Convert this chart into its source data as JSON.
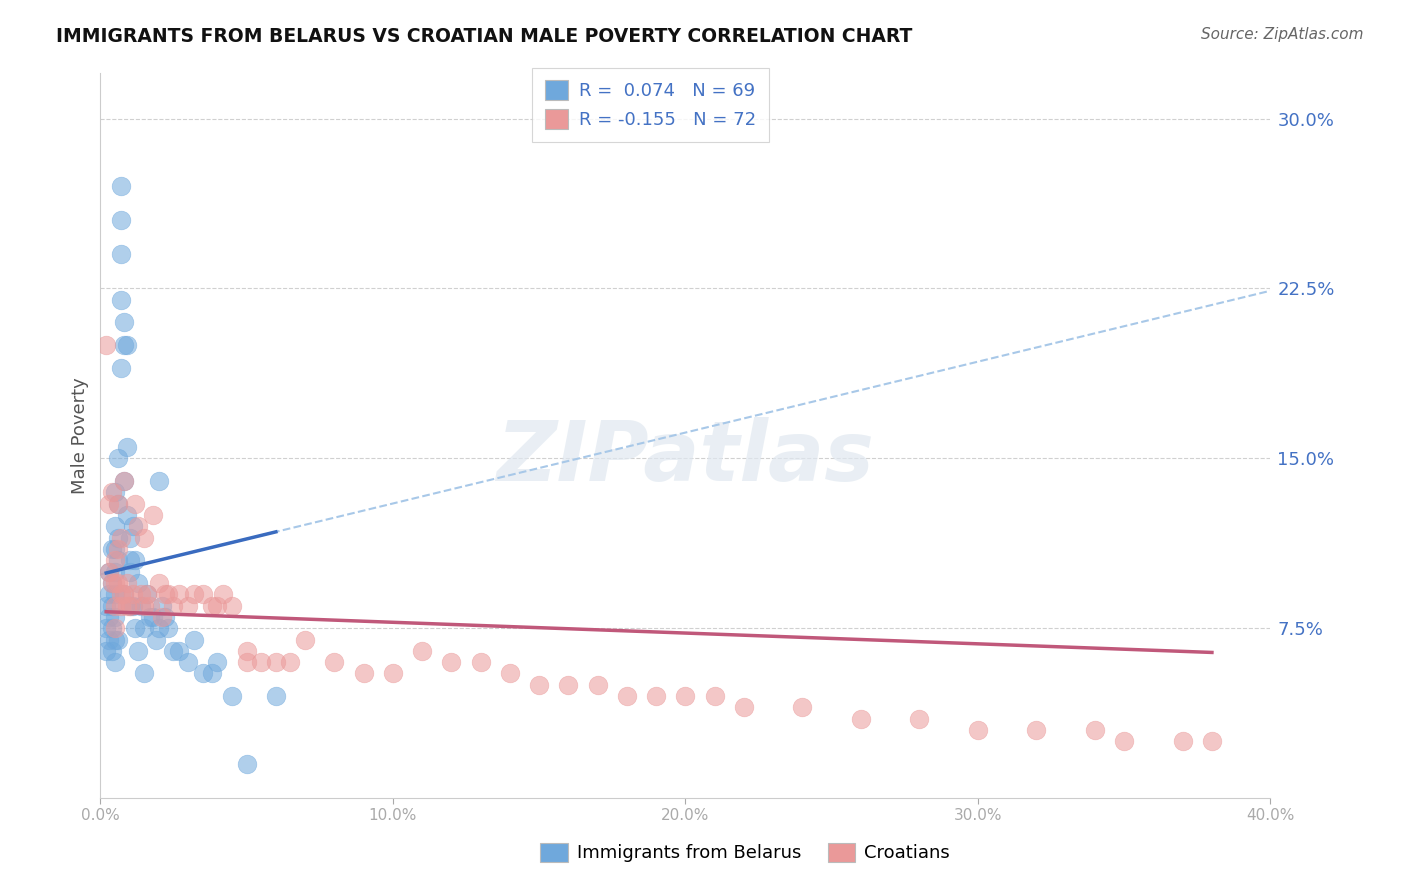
{
  "title": "IMMIGRANTS FROM BELARUS VS CROATIAN MALE POVERTY CORRELATION CHART",
  "source": "Source: ZipAtlas.com",
  "ylabel": "Male Poverty",
  "ytick_labels": [
    "7.5%",
    "15.0%",
    "22.5%",
    "30.0%"
  ],
  "ytick_values": [
    0.075,
    0.15,
    0.225,
    0.3
  ],
  "xlim": [
    0.0,
    0.4
  ],
  "ylim": [
    0.0,
    0.32
  ],
  "xtick_values": [
    0.0,
    0.1,
    0.2,
    0.3,
    0.4
  ],
  "xtick_labels": [
    "0.0%",
    "10.0%",
    "20.0%",
    "30.0%",
    "40.0%"
  ],
  "series1_color": "#6fa8dc",
  "series2_color": "#ea9999",
  "series1_edge_color": "#6fa8dc",
  "series2_edge_color": "#ea9999",
  "series1_label": "Immigrants from Belarus",
  "series2_label": "Croatians",
  "legend_R1_text": "R =  0.074   N = 69",
  "legend_R2_text": "R = -0.155   N = 72",
  "watermark": "ZIPatlas",
  "blue_line_color": "#3a6bbf",
  "pink_line_color": "#c0587a",
  "dashed_line_color": "#a8c8e8",
  "series1_x": [
    0.002,
    0.002,
    0.002,
    0.003,
    0.003,
    0.003,
    0.003,
    0.004,
    0.004,
    0.004,
    0.004,
    0.004,
    0.005,
    0.005,
    0.005,
    0.005,
    0.005,
    0.005,
    0.005,
    0.005,
    0.006,
    0.006,
    0.006,
    0.006,
    0.006,
    0.007,
    0.007,
    0.007,
    0.007,
    0.007,
    0.008,
    0.008,
    0.008,
    0.008,
    0.009,
    0.009,
    0.009,
    0.01,
    0.01,
    0.01,
    0.01,
    0.011,
    0.011,
    0.012,
    0.012,
    0.013,
    0.013,
    0.014,
    0.015,
    0.016,
    0.017,
    0.018,
    0.019,
    0.02,
    0.021,
    0.022,
    0.023,
    0.025,
    0.027,
    0.03,
    0.032,
    0.035,
    0.038,
    0.04,
    0.045,
    0.05,
    0.06,
    0.015,
    0.02
  ],
  "series1_y": [
    0.085,
    0.075,
    0.065,
    0.1,
    0.09,
    0.08,
    0.07,
    0.11,
    0.095,
    0.085,
    0.075,
    0.065,
    0.135,
    0.12,
    0.11,
    0.1,
    0.09,
    0.08,
    0.07,
    0.06,
    0.15,
    0.13,
    0.115,
    0.105,
    0.07,
    0.27,
    0.255,
    0.24,
    0.22,
    0.19,
    0.21,
    0.2,
    0.14,
    0.09,
    0.2,
    0.155,
    0.125,
    0.115,
    0.105,
    0.1,
    0.085,
    0.12,
    0.085,
    0.105,
    0.075,
    0.095,
    0.065,
    0.085,
    0.075,
    0.09,
    0.08,
    0.08,
    0.07,
    0.14,
    0.085,
    0.08,
    0.075,
    0.065,
    0.065,
    0.06,
    0.07,
    0.055,
    0.055,
    0.06,
    0.045,
    0.015,
    0.045,
    0.055,
    0.075
  ],
  "series2_x": [
    0.002,
    0.003,
    0.003,
    0.004,
    0.004,
    0.005,
    0.005,
    0.005,
    0.005,
    0.006,
    0.006,
    0.006,
    0.007,
    0.007,
    0.007,
    0.008,
    0.008,
    0.009,
    0.009,
    0.01,
    0.011,
    0.012,
    0.013,
    0.014,
    0.015,
    0.016,
    0.017,
    0.018,
    0.02,
    0.021,
    0.022,
    0.023,
    0.025,
    0.027,
    0.03,
    0.032,
    0.035,
    0.038,
    0.04,
    0.042,
    0.045,
    0.05,
    0.055,
    0.06,
    0.065,
    0.07,
    0.08,
    0.09,
    0.1,
    0.11,
    0.12,
    0.13,
    0.14,
    0.15,
    0.16,
    0.17,
    0.18,
    0.19,
    0.2,
    0.21,
    0.22,
    0.24,
    0.26,
    0.28,
    0.3,
    0.32,
    0.34,
    0.35,
    0.37,
    0.38,
    0.05,
    0.015
  ],
  "series2_y": [
    0.2,
    0.13,
    0.1,
    0.135,
    0.095,
    0.105,
    0.095,
    0.085,
    0.075,
    0.13,
    0.11,
    0.095,
    0.115,
    0.09,
    0.085,
    0.14,
    0.09,
    0.095,
    0.085,
    0.085,
    0.09,
    0.13,
    0.12,
    0.09,
    0.085,
    0.09,
    0.085,
    0.125,
    0.095,
    0.08,
    0.09,
    0.09,
    0.085,
    0.09,
    0.085,
    0.09,
    0.09,
    0.085,
    0.085,
    0.09,
    0.085,
    0.065,
    0.06,
    0.06,
    0.06,
    0.07,
    0.06,
    0.055,
    0.055,
    0.065,
    0.06,
    0.06,
    0.055,
    0.05,
    0.05,
    0.05,
    0.045,
    0.045,
    0.045,
    0.045,
    0.04,
    0.04,
    0.035,
    0.035,
    0.03,
    0.03,
    0.03,
    0.025,
    0.025,
    0.025,
    0.06,
    0.115
  ]
}
